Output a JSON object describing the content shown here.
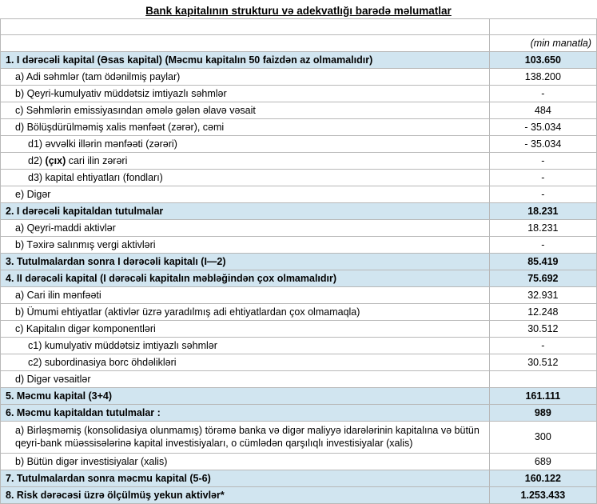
{
  "title": "Bank kapitalının strukturu və adekvatlığı barədə məlumatlar",
  "unit": "(min manatla)",
  "rows": [
    {
      "label": "1. I dərəcəli kapital (Əsas kapital) (Məcmu kapitalın 50 faizdən  az olmamalıdır)",
      "value": "103.650",
      "hl": true,
      "bold": true,
      "indent": 0
    },
    {
      "label": "a) Adi səhmlər (tam ödənilmiş paylar)",
      "value": "138.200",
      "indent": 1
    },
    {
      "label": "b) Qeyri-kumulyativ müddətsiz imtiyazlı səhmlər",
      "value": "-",
      "indent": 1
    },
    {
      "label": "c) Səhmlərin emissiyasından əmələ gələn  əlavə vəsait",
      "value": "484",
      "indent": 1
    },
    {
      "label": "d)    Bölüşdürülməmiş xalis mənfəət (zərər), cəmi",
      "value": "- 35.034",
      "indent": 1
    },
    {
      "label": "d1) əvvəlki illərin mənfəəti (zərəri)",
      "value": "- 35.034",
      "indent": 2
    },
    {
      "label": "d2) (çıx) cari ilin zərəri",
      "value": "-",
      "indent": 2
    },
    {
      "label": "d3) kapital ehtiyatları (fondları)",
      "value": "-",
      "indent": 2
    },
    {
      "label": "e) Digər",
      "value": "-",
      "indent": 1
    },
    {
      "label": "2. I dərəcəli kapitaldan  tutulmalar",
      "value": "18.231",
      "hl": true,
      "bold": true,
      "indent": 0
    },
    {
      "label": "a) Qeyri-maddi aktivlər",
      "value": "18.231",
      "indent": 1
    },
    {
      "label": "b) Təxirə salınmış vergi aktivləri",
      "value": "-",
      "indent": 1
    },
    {
      "label": "3. Tutulmalardan  sonra I dərəcəli kapitalı (I—2)",
      "value": "85.419",
      "hl": true,
      "bold": true,
      "indent": 0
    },
    {
      "label": "4. II dərəcəli  kapital (I dərəcəli  kapitalın  məbləğindən çox olmamalıdır)",
      "value": "75.692",
      "hl": true,
      "bold": true,
      "indent": 0
    },
    {
      "label": "a) Cari ilin mənfəəti",
      "value": "32.931",
      "indent": 1
    },
    {
      "label": "b) Ümumi ehtiyatlar (aktivlər üzrə yaradılmış adi ehtiyatlardan çox olmamaqla)",
      "value": "12.248",
      "indent": 1
    },
    {
      "label": "c)  Kapitalın digər komponentləri",
      "value": "30.512",
      "indent": 1
    },
    {
      "label": "c1) kumulyativ müddətsiz imtiyazlı səhmlər",
      "value": "-",
      "indent": 2
    },
    {
      "label": "c2) subordinasiya borc öhdəlikləri",
      "value": "30.512",
      "indent": 2
    },
    {
      "label": "d) Digər vəsaitlər",
      "value": "",
      "indent": 1
    },
    {
      "label": "5. Məcmu kapital (3+4)",
      "value": "161.111",
      "hl": true,
      "bold": true,
      "indent": 0
    },
    {
      "label": "6. Məcmu kapitaldan tutulmalar :",
      "value": "989",
      "hl": true,
      "bold": true,
      "indent": 0
    },
    {
      "label": "a)   Birləşməmiş (konsolidasiya olunmamış) törəmə banka və digər maliyyə idarələrinin kapitalına və bütün qeyri-bank müəssisələrinə kapital investisiyaları, o cümlədən qarşılıqlı investisiyalar (xalis)",
      "value": "300",
      "indent": 1,
      "wrap": true
    },
    {
      "label": "b)    Bütün digər investisiyalar (xalis)",
      "value": "689",
      "indent": 1
    },
    {
      "label": "7. Tutulmalardan  sonra məcmu kapital (5-6)",
      "value": "160.122",
      "hl": true,
      "bold": true,
      "indent": 0
    },
    {
      "label": "8. Risk dərəcəsi üzrə ölçülmüş  yekun aktivlər*",
      "value": "1.253.433",
      "hl": true,
      "bold": true,
      "indent": 0
    }
  ]
}
